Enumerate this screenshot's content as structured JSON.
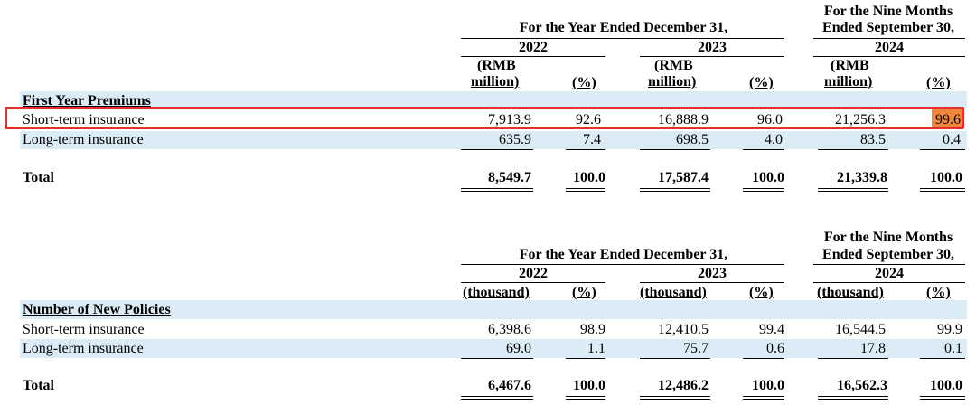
{
  "colors": {
    "row_band": "#dcecf7",
    "highlight_border": "#e8302a",
    "highlight_fill": "#f0873c"
  },
  "table1": {
    "year_header": "For the Year Ended December 31,",
    "nine_months_line1": "For the Nine Months",
    "nine_months_line2": "Ended September 30,",
    "years": [
      "2022",
      "2023",
      "2024"
    ],
    "unit_line1": "(RMB",
    "unit_line2": "million)",
    "pct": "(%)",
    "section_label": "First Year Premiums",
    "rows": [
      {
        "label": "Short-term insurance",
        "values": [
          "7,913.9",
          "92.6",
          "16,888.9",
          "96.0",
          "21,256.3",
          "99.6"
        ]
      },
      {
        "label": "Long-term insurance",
        "values": [
          "635.9",
          "7.4",
          "698.5",
          "4.0",
          "83.5",
          "0.4"
        ]
      }
    ],
    "total": {
      "label": "Total",
      "values": [
        "8,549.7",
        "100.0",
        "17,587.4",
        "100.0",
        "21,339.8",
        "100.0"
      ]
    }
  },
  "table2": {
    "year_header": "For the Year Ended December 31,",
    "nine_months_line1": "For the Nine Months",
    "nine_months_line2": "Ended September 30,",
    "years": [
      "2022",
      "2023",
      "2024"
    ],
    "unit": "(thousand)",
    "pct": "(%)",
    "section_label": "Number of New Policies",
    "rows": [
      {
        "label": "Short-term insurance",
        "values": [
          "6,398.6",
          "98.9",
          "12,410.5",
          "99.4",
          "16,544.5",
          "99.9"
        ]
      },
      {
        "label": "Long-term insurance",
        "values": [
          "69.0",
          "1.1",
          "75.7",
          "0.6",
          "17.8",
          "0.1"
        ]
      }
    ],
    "total": {
      "label": "Total",
      "values": [
        "6,467.6",
        "100.0",
        "12,486.2",
        "100.0",
        "16,562.3",
        "100.0"
      ]
    }
  }
}
